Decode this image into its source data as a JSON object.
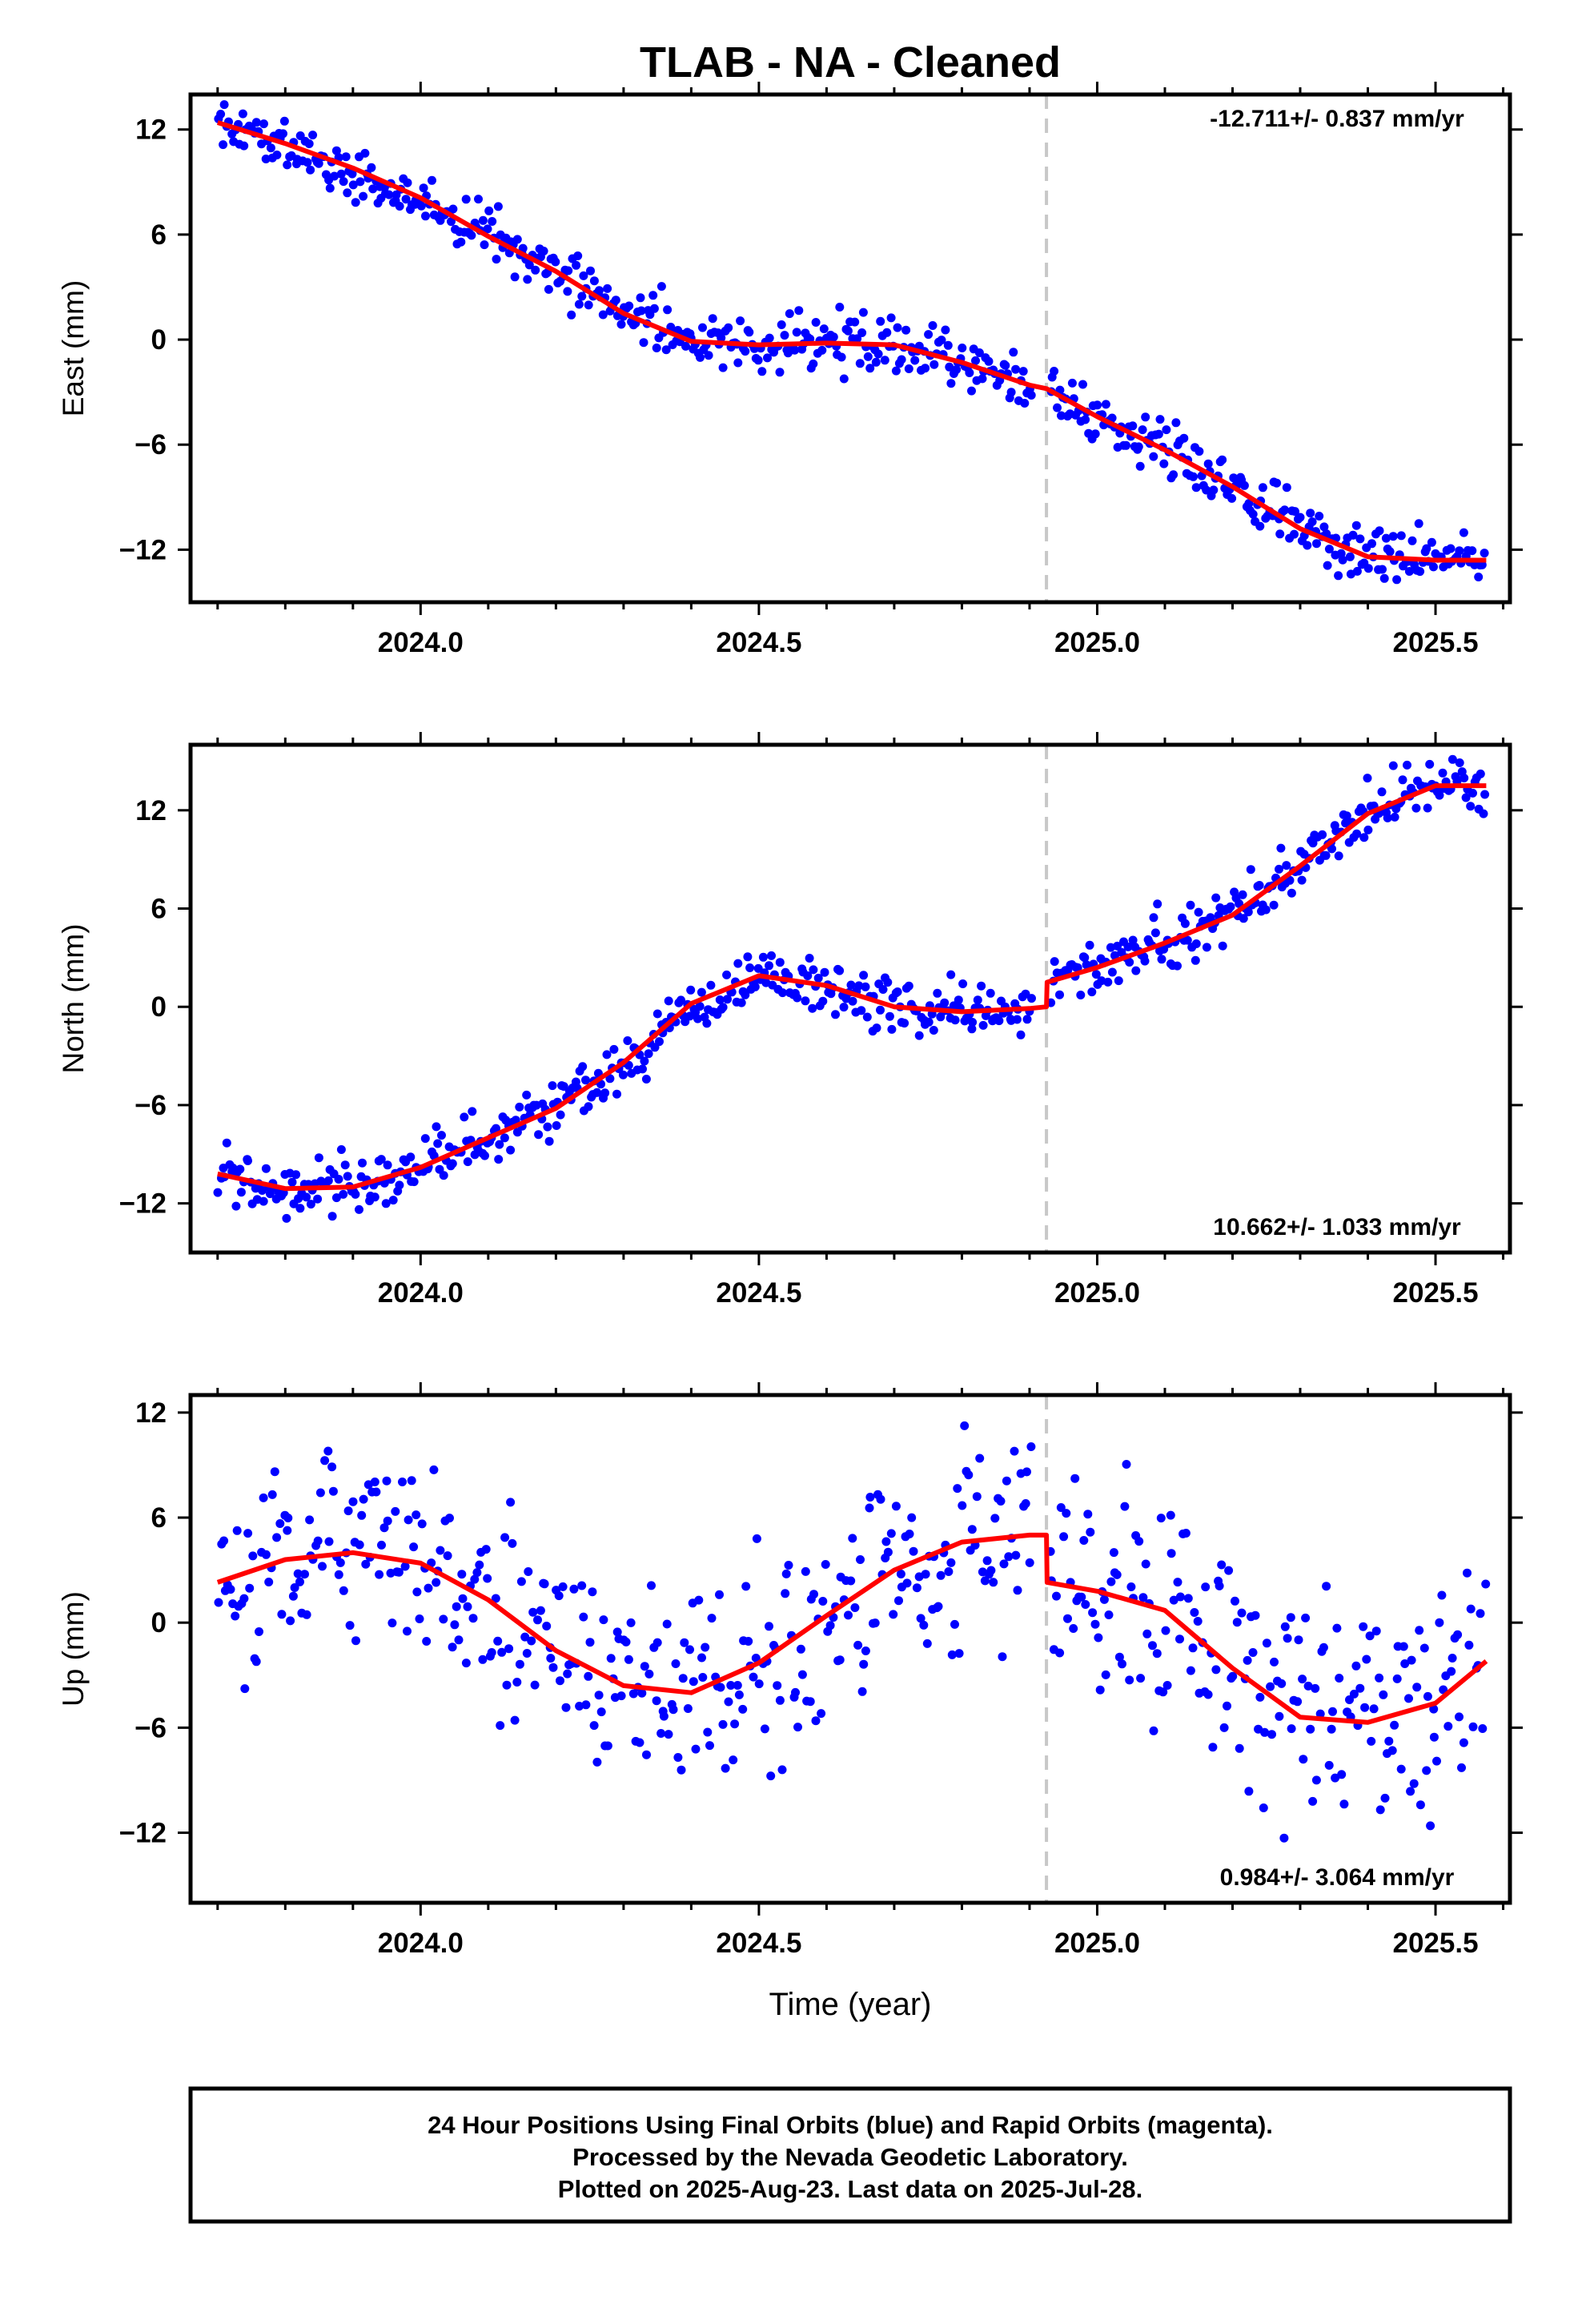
{
  "title": "TLAB  - NA - Cleaned",
  "colors": {
    "points": "#0000ff",
    "model": "#ff0000",
    "event_line": "#c8c8c8",
    "axes": "#000000"
  },
  "footer": {
    "line1": "24 Hour Positions Using Final Orbits (blue) and Rapid Orbits (magenta).",
    "line2": "Processed by the Nevada Geodetic Laboratory.",
    "line3": "Plotted on 2025-Aug-23. Last data on 2025-Jul-28."
  },
  "chart_data": [
    {
      "type": "scatter",
      "component": "East",
      "ylabel": "East (mm)",
      "xlabel": "",
      "xlim": [
        2023.66,
        2025.61
      ],
      "ylim": [
        -15,
        14
      ],
      "xticks": [
        2024.0,
        2024.5,
        2025.0,
        2025.5
      ],
      "xtick_labels": [
        "2024.0",
        "2024.5",
        "2025.0",
        "2025.5"
      ],
      "yticks": [
        12,
        6,
        0,
        -6,
        -12
      ],
      "ytick_labels": [
        "12",
        "6",
        "0",
        "−6",
        "−12"
      ],
      "event_x": 2024.925,
      "rate_label": "-12.711+/- 0.837 mm/yr",
      "rate_position": "top-right",
      "data_start": 2023.7,
      "data_end": 2025.575,
      "model": {
        "x": [
          2023.7,
          2023.8,
          2023.9,
          2024.0,
          2024.1,
          2024.2,
          2024.3,
          2024.4,
          2024.5,
          2024.6,
          2024.7,
          2024.8,
          2024.9,
          2024.925,
          2025.0,
          2025.1,
          2025.2,
          2025.3,
          2025.4,
          2025.5,
          2025.575
        ],
        "y": [
          12.4,
          11.2,
          9.8,
          8.1,
          5.9,
          3.9,
          1.5,
          -0.1,
          -0.3,
          -0.2,
          -0.3,
          -1.3,
          -2.6,
          -2.8,
          -4.4,
          -6.3,
          -8.4,
          -10.8,
          -12.4,
          -12.6,
          -12.6
        ]
      },
      "scatter": {
        "count": 590,
        "seed": 11,
        "noise_mm": 0.8,
        "gap": [
          2024.905,
          2024.93
        ],
        "data_start": 2023.7,
        "data_end": 2025.575
      }
    },
    {
      "type": "scatter",
      "component": "North",
      "ylabel": "North (mm)",
      "xlabel": "",
      "xlim": [
        2023.66,
        2025.61
      ],
      "ylim": [
        -15,
        16
      ],
      "xticks": [
        2024.0,
        2024.5,
        2025.0,
        2025.5
      ],
      "xtick_labels": [
        "2024.0",
        "2024.5",
        "2025.0",
        "2025.5"
      ],
      "yticks": [
        12,
        6,
        0,
        -6,
        -12
      ],
      "ytick_labels": [
        "12",
        "6",
        "0",
        "−6",
        "−12"
      ],
      "event_x": 2024.925,
      "rate_label": "10.662+/- 1.033 mm/yr",
      "rate_position": "bottom-right",
      "model": {
        "x": [
          2023.7,
          2023.8,
          2023.9,
          2024.0,
          2024.1,
          2024.2,
          2024.3,
          2024.4,
          2024.5,
          2024.6,
          2024.7,
          2024.8,
          2024.9,
          2024.925,
          2024.926,
          2025.0,
          2025.1,
          2025.2,
          2025.3,
          2025.4,
          2025.5,
          2025.575
        ],
        "y": [
          -10.2,
          -11.1,
          -11.0,
          -9.8,
          -8.0,
          -6.2,
          -3.4,
          0.2,
          1.9,
          1.3,
          0.0,
          -0.3,
          -0.1,
          0.0,
          1.5,
          2.4,
          3.9,
          5.6,
          8.6,
          11.8,
          13.5,
          13.5
        ]
      },
      "scatter": {
        "count": 590,
        "seed": 23,
        "noise_mm": 0.85,
        "gap": [
          2024.905,
          2024.93
        ],
        "data_start": 2023.7,
        "data_end": 2025.575
      }
    },
    {
      "type": "scatter",
      "component": "Up",
      "ylabel": "Up (mm)",
      "xlabel": "Time (year)",
      "xlim": [
        2023.66,
        2025.61
      ],
      "ylim": [
        -16,
        13
      ],
      "xticks": [
        2024.0,
        2024.5,
        2025.0,
        2025.5
      ],
      "xtick_labels": [
        "2024.0",
        "2024.5",
        "2025.0",
        "2025.5"
      ],
      "yticks": [
        12,
        6,
        0,
        -6,
        -12
      ],
      "ytick_labels": [
        "12",
        "6",
        "0",
        "−6",
        "−12"
      ],
      "event_x": 2024.925,
      "rate_label": "0.984+/- 3.064 mm/yr",
      "rate_position": "bottom-right",
      "model": {
        "x": [
          2023.7,
          2023.8,
          2023.9,
          2024.0,
          2024.1,
          2024.2,
          2024.3,
          2024.4,
          2024.5,
          2024.6,
          2024.7,
          2024.8,
          2024.9,
          2024.925,
          2024.926,
          2025.0,
          2025.1,
          2025.2,
          2025.3,
          2025.4,
          2025.5,
          2025.575
        ],
        "y": [
          2.3,
          3.6,
          4.0,
          3.4,
          1.3,
          -1.6,
          -3.6,
          -4.0,
          -2.3,
          0.4,
          3.0,
          4.6,
          5.0,
          5.0,
          2.3,
          1.8,
          0.7,
          -2.6,
          -5.4,
          -5.7,
          -4.6,
          -2.2
        ]
      },
      "scatter": {
        "count": 560,
        "seed": 37,
        "noise_mm": 3.0,
        "gap": [
          2024.905,
          2024.93
        ],
        "data_start": 2023.7,
        "data_end": 2025.575
      }
    }
  ]
}
